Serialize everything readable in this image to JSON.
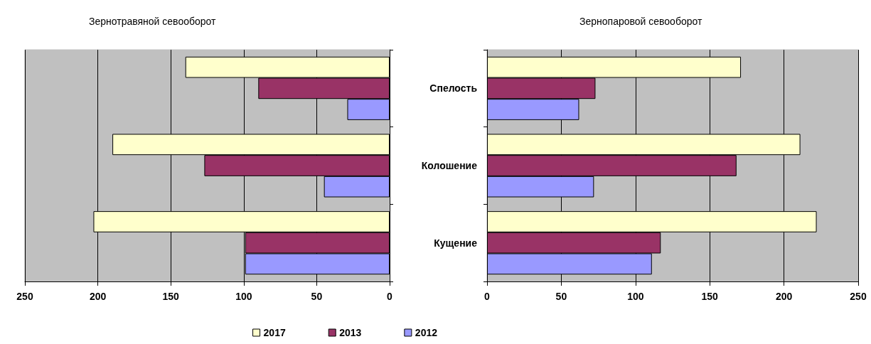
{
  "chart_data": [
    {
      "type": "bar",
      "orientation": "horizontal",
      "title": "Зернотравяной севооборот",
      "categories": [
        null,
        null,
        null
      ],
      "series": [
        {
          "name": "2017",
          "color": "#ffffcc",
          "values": [
            140,
            190,
            203
          ]
        },
        {
          "name": "2013",
          "color": "#993366",
          "values": [
            90,
            127,
            99
          ]
        },
        {
          "name": "2012",
          "color": "#9999ff",
          "values": [
            29,
            45,
            99
          ]
        }
      ],
      "xlim": [
        250,
        0
      ],
      "xticks": [
        250,
        200,
        150,
        100,
        50,
        0
      ],
      "grid": "x",
      "legend": "bottom right"
    },
    {
      "type": "bar",
      "orientation": "horizontal",
      "title": "Зернопаровой севооборот",
      "categories": [
        "Спелость",
        "Колошение",
        "Кущение"
      ],
      "series": [
        {
          "color": "#ffffcc",
          "values": [
            171,
            211,
            222
          ]
        },
        {
          "color": "#993366",
          "values": [
            73,
            168,
            117
          ]
        },
        {
          "color": "#9999ff",
          "values": [
            62,
            72,
            111
          ]
        }
      ],
      "xlim": [
        0,
        250
      ],
      "xticks": [
        0,
        50,
        100,
        150,
        200,
        250
      ],
      "grid": "x"
    }
  ]
}
